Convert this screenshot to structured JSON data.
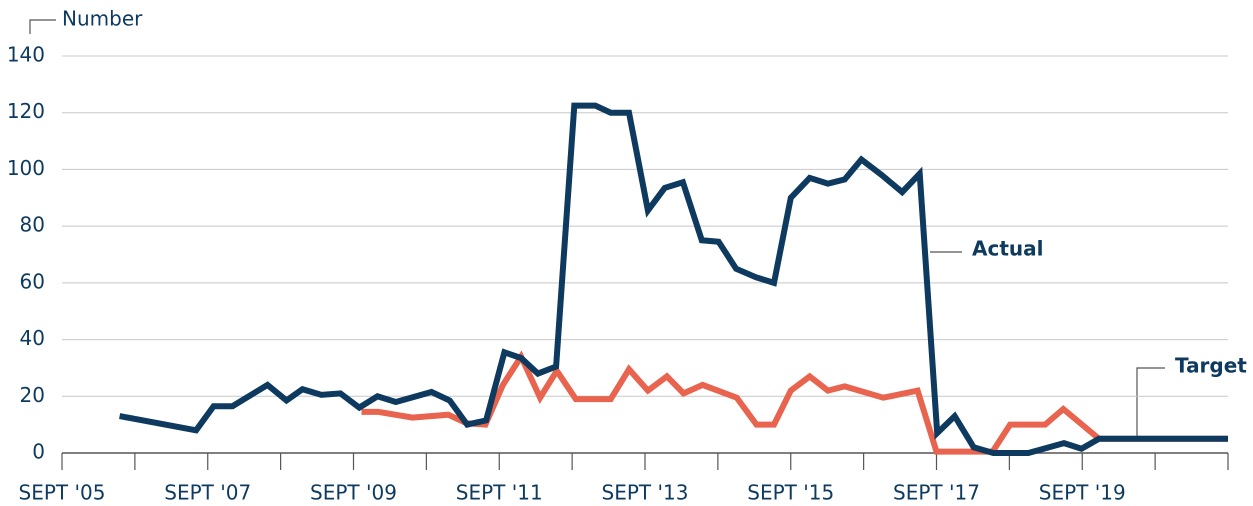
{
  "chart_data": {
    "type": "line",
    "y_axis_label": "Number",
    "ylim": [
      0,
      140
    ],
    "yticks": [
      0,
      20,
      40,
      60,
      80,
      100,
      120,
      140
    ],
    "xlim": [
      2005.75,
      2021.75
    ],
    "xticks": [
      {
        "value": 2005.75,
        "label": "SEPT '05"
      },
      {
        "value": 2007.75,
        "label": "SEPT '07"
      },
      {
        "value": 2009.75,
        "label": "SEPT '09"
      },
      {
        "value": 2011.75,
        "label": "SEPT '11"
      },
      {
        "value": 2013.75,
        "label": "SEPT '13"
      },
      {
        "value": 2015.75,
        "label": "SEPT '15"
      },
      {
        "value": 2017.75,
        "label": "SEPT '17"
      },
      {
        "value": 2019.75,
        "label": "SEPT '19"
      }
    ],
    "xminorticks": [
      2006.75,
      2008.75,
      2010.75,
      2012.75,
      2014.75,
      2016.75,
      2018.75,
      2020.75,
      2021.75
    ],
    "grid": true,
    "series": [
      {
        "name": "Actual",
        "color": "#0d3a5e",
        "x": [
          2006.54,
          2007.59,
          2007.83,
          2008.09,
          2008.57,
          2008.83,
          2009.05,
          2009.31,
          2009.57,
          2009.83,
          2010.08,
          2010.33,
          2010.82,
          2011.07,
          2011.31,
          2011.57,
          2011.82,
          2012.05,
          2012.28,
          2012.53,
          2012.78,
          2013.07,
          2013.28,
          2013.53,
          2013.79,
          2014.02,
          2014.27,
          2014.53,
          2014.76,
          2015.0,
          2015.27,
          2015.52,
          2015.75,
          2016.01,
          2016.26,
          2016.49,
          2016.72,
          2017.0,
          2017.28,
          2017.52,
          2017.76,
          2018.0,
          2018.26,
          2018.53,
          2019.01,
          2019.5,
          2019.74,
          2019.98,
          2021.75
        ],
        "values": [
          13,
          8,
          16.5,
          16.5,
          24,
          18.5,
          22.5,
          20.5,
          21,
          16,
          20,
          18,
          21.5,
          18.5,
          10,
          11.5,
          35.5,
          33.5,
          28,
          30.5,
          122.5,
          122.5,
          120,
          120,
          85.5,
          93.5,
          95.5,
          75,
          74.5,
          65,
          62,
          60,
          90,
          97,
          95,
          96.5,
          103.5,
          98,
          92,
          98.5,
          7,
          13,
          2,
          0,
          0,
          3.5,
          1.5,
          5,
          5
        ]
      },
      {
        "name": "Target",
        "color": "#e8644f",
        "x": [
          2009.86,
          2010.09,
          2010.56,
          2011.05,
          2011.3,
          2011.56,
          2011.8,
          2012.05,
          2012.31,
          2012.54,
          2012.8,
          2013.28,
          2013.53,
          2013.79,
          2014.05,
          2014.28,
          2014.54,
          2015.01,
          2015.28,
          2015.52,
          2015.75,
          2016.01,
          2016.26,
          2016.49,
          2017.02,
          2017.49,
          2017.75,
          2018.52,
          2018.76,
          2019.24,
          2019.49,
          2019.98,
          2021.75
        ],
        "values": [
          14.5,
          14.5,
          12.5,
          13.5,
          10.5,
          10,
          24,
          34,
          19.5,
          29,
          19,
          19,
          29.5,
          22,
          27,
          21,
          24,
          19.5,
          10,
          10,
          22,
          27,
          22,
          23.5,
          19.5,
          22,
          0.5,
          0.5,
          10,
          10,
          15.5,
          5,
          5
        ]
      }
    ]
  }
}
